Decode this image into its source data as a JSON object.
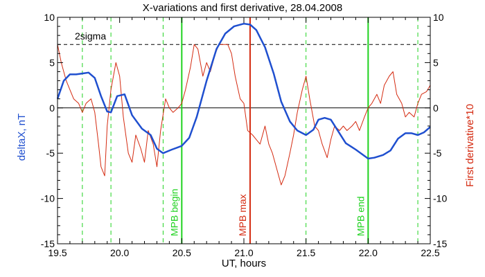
{
  "chart_data": {
    "type": "line",
    "title": "X-variations and first derivative, 28.04.2008",
    "xlabel": "UT, hours",
    "ylabel_left": "deltaX, nT",
    "ylabel_right": "First derivative*10",
    "xlim": [
      19.5,
      22.5
    ],
    "ylim": [
      -15,
      10
    ],
    "xticks": [
      19.5,
      20.0,
      20.5,
      21.0,
      21.5,
      22.0,
      22.5
    ],
    "xtick_labels": [
      "19.5",
      "20.0",
      "20.5",
      "21.0",
      "21.5",
      "22.0",
      "22.5"
    ],
    "yticks": [
      -15,
      -10,
      -5,
      0,
      5,
      10
    ],
    "ytick_labels": [
      "-15",
      "-10",
      "-5",
      "0",
      "5",
      "10"
    ],
    "sigma_level": 7,
    "sigma_label": "2sigma",
    "colors": {
      "deltaX": "#1f4fcf",
      "derivative": "#d42a10",
      "markers": "#1ed21e",
      "max_marker": "#d42a10"
    },
    "vertical_markers": [
      {
        "x": 20.5,
        "label": "MPB begin",
        "color": "#1ed21e"
      },
      {
        "x": 21.05,
        "label": "MPB max",
        "color": "#d42a10"
      },
      {
        "x": 22.0,
        "label": "MPB end",
        "color": "#1ed21e"
      }
    ],
    "dashed_verticals": [
      19.7,
      19.93,
      20.35,
      21.5,
      22.4
    ],
    "series": [
      {
        "key": "deltaX",
        "x": [
          19.5,
          19.55,
          19.6,
          19.65,
          19.7,
          19.75,
          19.8,
          19.85,
          19.9,
          19.93,
          19.98,
          20.04,
          20.1,
          20.18,
          20.25,
          20.3,
          20.35,
          20.42,
          20.5,
          20.56,
          20.62,
          20.7,
          20.78,
          20.85,
          20.92,
          21.0,
          21.05,
          21.1,
          21.17,
          21.24,
          21.3,
          21.37,
          21.43,
          21.5,
          21.56,
          21.6,
          21.65,
          21.7,
          21.76,
          21.82,
          21.9,
          22.0,
          22.05,
          22.12,
          22.18,
          22.24,
          22.3,
          22.35,
          22.4,
          22.45,
          22.5
        ],
        "y": [
          1.0,
          3.0,
          3.7,
          3.7,
          3.8,
          3.9,
          3.3,
          1.3,
          -0.4,
          -0.5,
          1.3,
          1.5,
          -0.8,
          -2.3,
          -3.0,
          -4.5,
          -5.0,
          -4.6,
          -4.2,
          -3.3,
          -1.0,
          3.0,
          6.5,
          8.2,
          9.0,
          9.3,
          9.2,
          8.6,
          6.7,
          3.8,
          0.7,
          -1.5,
          -2.5,
          -3.0,
          -2.4,
          -1.3,
          -1.1,
          -1.3,
          -2.6,
          -3.9,
          -4.6,
          -5.6,
          -5.5,
          -5.2,
          -4.7,
          -3.4,
          -2.8,
          -2.8,
          -3.0,
          -2.7,
          -2.1
        ]
      },
      {
        "key": "derivative",
        "x": [
          19.5,
          19.53,
          19.57,
          19.6,
          19.63,
          19.67,
          19.7,
          19.73,
          19.77,
          19.8,
          19.83,
          19.85,
          19.88,
          19.9,
          19.93,
          19.97,
          20.0,
          20.03,
          20.07,
          20.1,
          20.13,
          20.17,
          20.2,
          20.23,
          20.27,
          20.3,
          20.33,
          20.37,
          20.4,
          20.43,
          20.47,
          20.5,
          20.53,
          20.57,
          20.6,
          20.63,
          20.67,
          20.7,
          20.73,
          20.77,
          20.8,
          20.83,
          20.87,
          20.9,
          20.93,
          20.97,
          21.0,
          21.03,
          21.07,
          21.1,
          21.13,
          21.17,
          21.2,
          21.23,
          21.27,
          21.3,
          21.33,
          21.37,
          21.4,
          21.43,
          21.47,
          21.5,
          21.53,
          21.57,
          21.6,
          21.63,
          21.67,
          21.7,
          21.73,
          21.77,
          21.8,
          21.83,
          21.87,
          21.9,
          21.93,
          21.97,
          22.0,
          22.03,
          22.07,
          22.1,
          22.13,
          22.17,
          22.2,
          22.23,
          22.27,
          22.3,
          22.33,
          22.37,
          22.4,
          22.43,
          22.47,
          22.5
        ],
        "y": [
          7.0,
          5.0,
          3.0,
          2.0,
          1.0,
          0.5,
          -0.5,
          0.5,
          1.0,
          -0.5,
          -4.0,
          -6.5,
          -7.5,
          -2.0,
          2.0,
          5.0,
          3.5,
          -1.0,
          -5.0,
          -6.0,
          -3.0,
          -4.5,
          -6.0,
          -2.5,
          -4.0,
          -6.5,
          -2.5,
          1.0,
          0.0,
          -0.5,
          0.0,
          0.5,
          2.0,
          4.5,
          7.0,
          6.5,
          3.5,
          5.0,
          4.0,
          6.0,
          7.0,
          7.0,
          7.0,
          6.0,
          3.5,
          1.0,
          0.5,
          -2.5,
          -3.0,
          -3.5,
          -4.0,
          -2.0,
          -4.0,
          -5.0,
          -7.0,
          -8.5,
          -7.5,
          -5.0,
          -3.0,
          -0.5,
          2.0,
          3.5,
          1.0,
          -2.0,
          -2.5,
          -4.0,
          -5.5,
          -3.5,
          -2.0,
          -2.5,
          -2.0,
          -2.5,
          -2.0,
          -1.5,
          -2.5,
          -1.0,
          0.0,
          0.5,
          1.5,
          0.5,
          2.5,
          3.5,
          4.0,
          1.5,
          0.5,
          -1.0,
          -0.5,
          -1.0,
          0.5,
          1.5,
          1.8,
          2.5
        ]
      }
    ]
  }
}
